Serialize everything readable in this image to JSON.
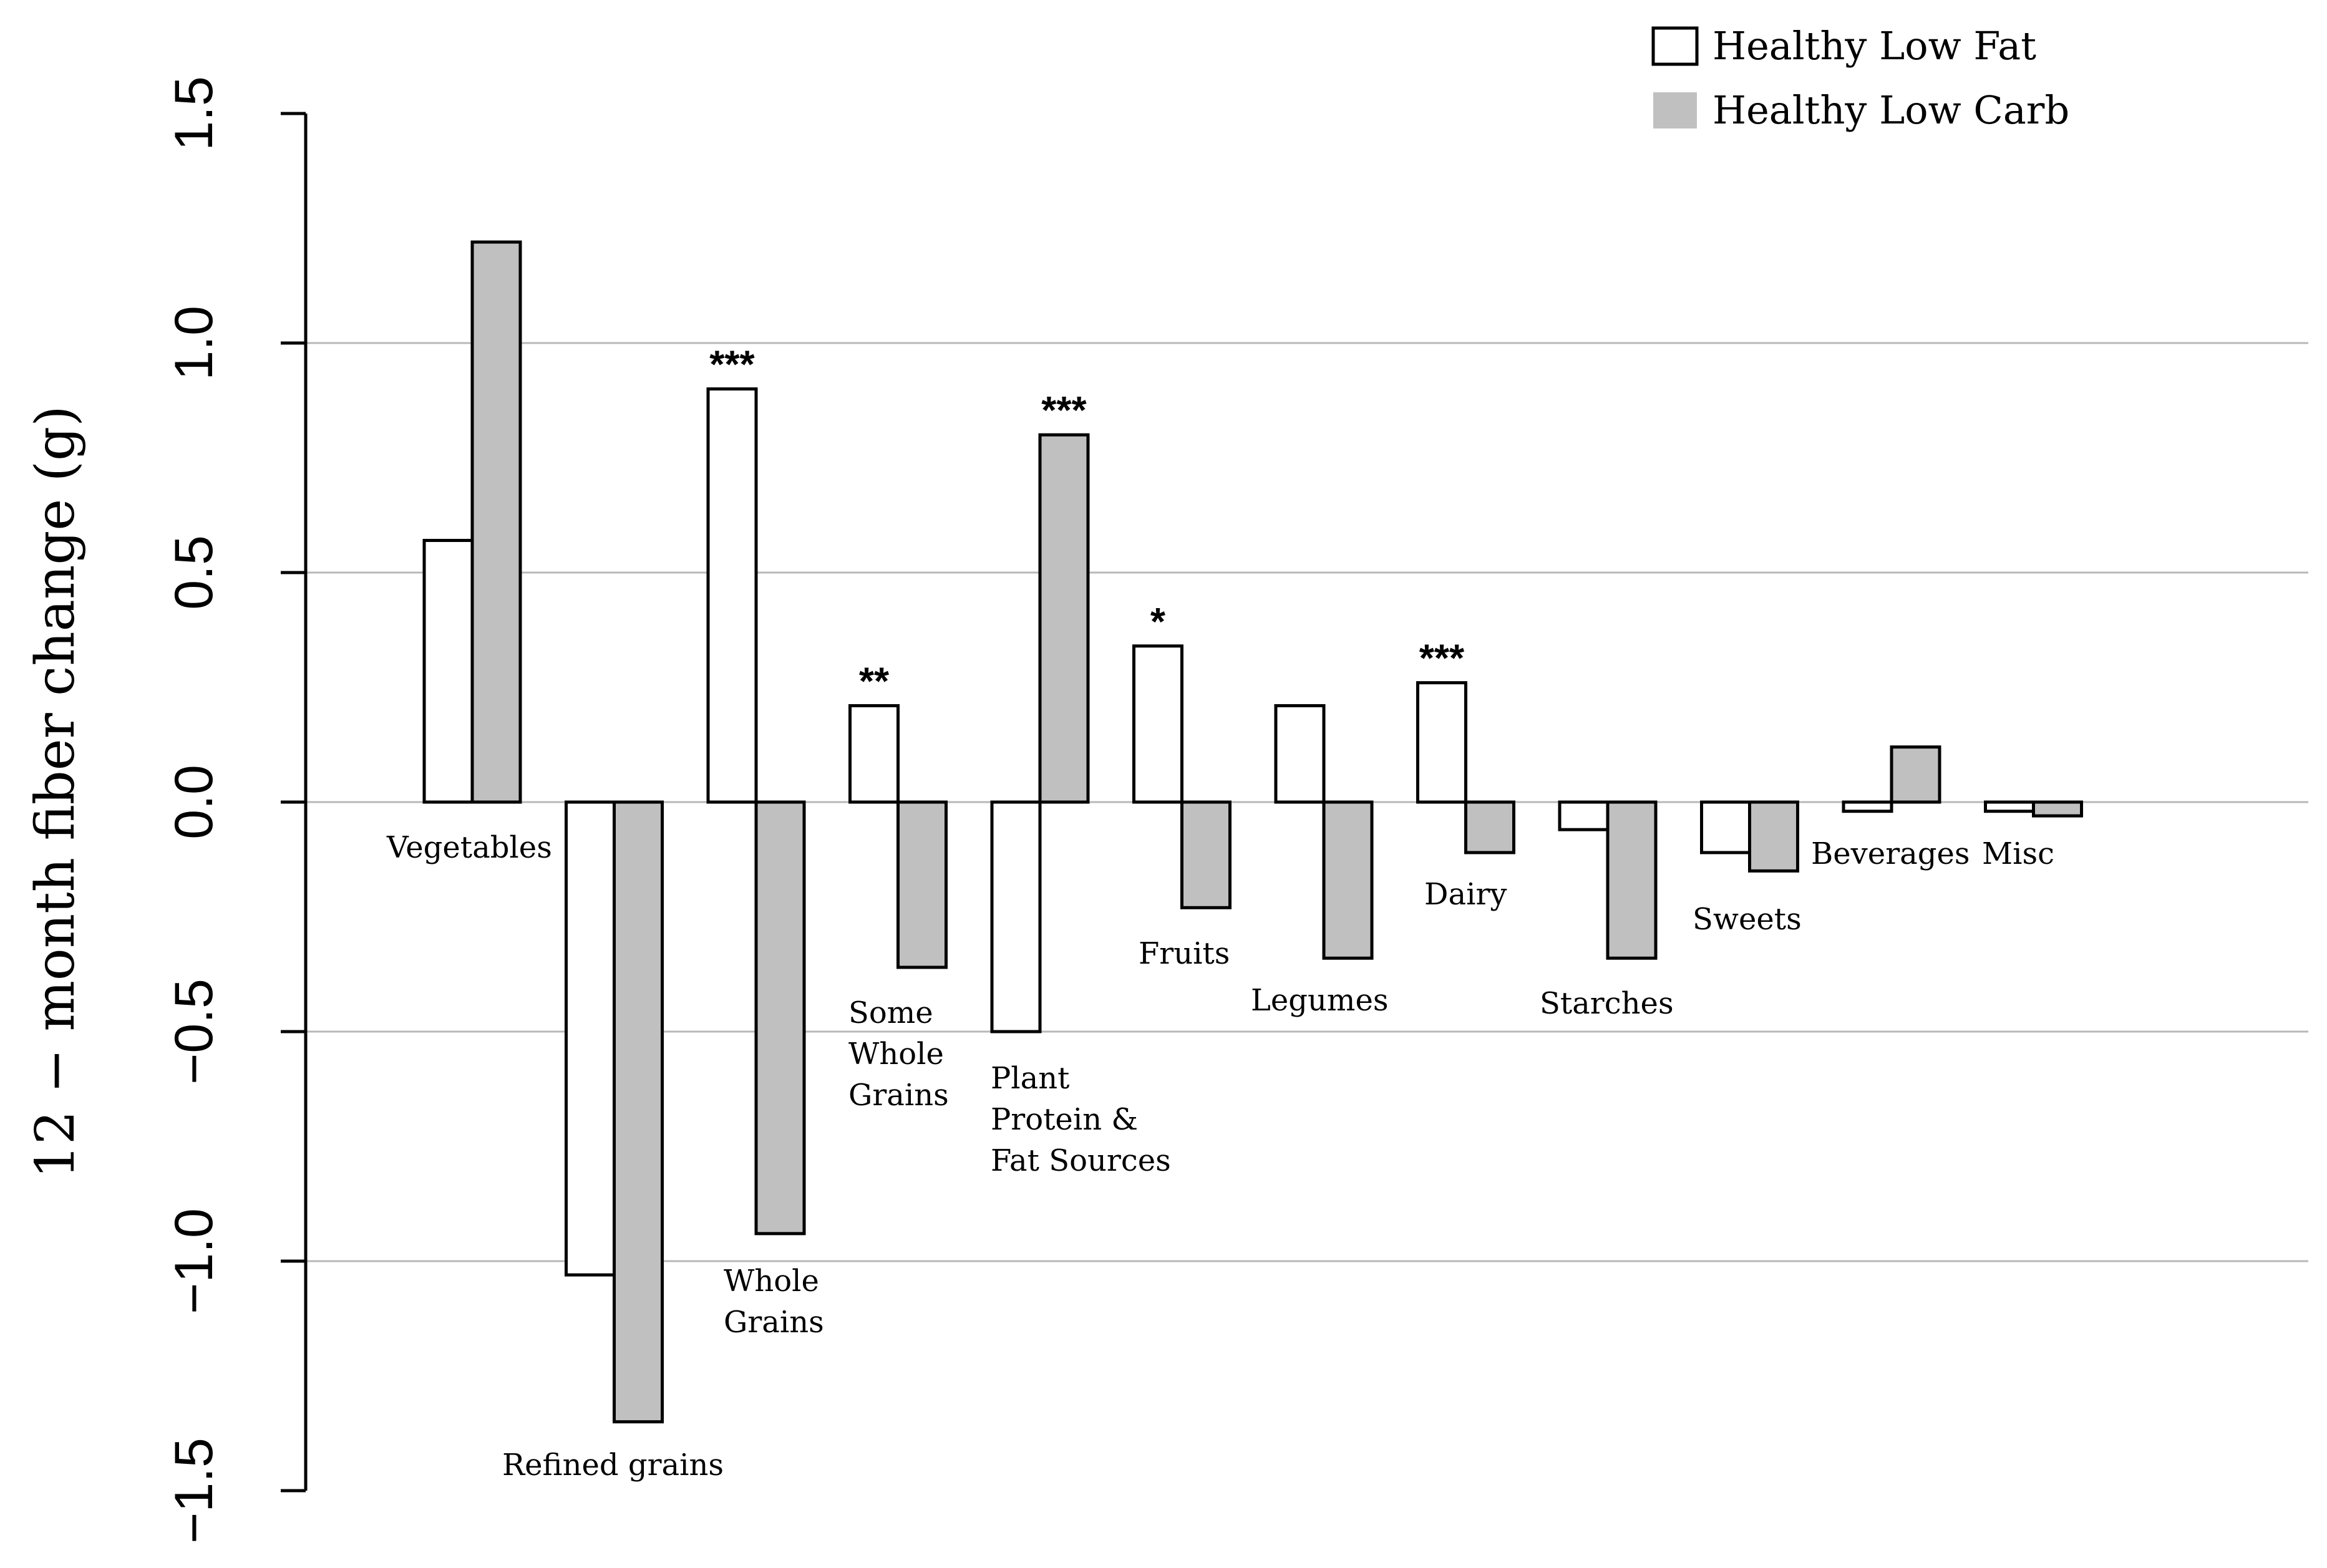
{
  "chart_data": {
    "type": "bar",
    "title": "",
    "xlabel": "",
    "ylabel": "12 − month fiber change (g)",
    "ylim": [
      -1.5,
      1.5
    ],
    "yticks": [
      -1.5,
      -1.0,
      -0.5,
      0.0,
      0.5,
      1.0,
      1.5
    ],
    "ytick_labels": [
      "−1.5",
      "−1.0",
      "−0.5",
      "0.0",
      "0.5",
      "1.0",
      "1.5"
    ],
    "grid": true,
    "legend_position": "top-right",
    "categories": [
      "Vegetables",
      "Refined grains",
      "Whole Grains",
      "Some Whole Grains",
      "Plant Protein & Fat Sources",
      "Fruits",
      "Legumes",
      "Dairy",
      "Starches",
      "Sweets",
      "Beverages",
      "Misc"
    ],
    "category_label_lines": [
      [
        "Vegetables"
      ],
      [
        "Refined grains"
      ],
      [
        "Whole",
        "Grains"
      ],
      [
        "Some",
        "Whole",
        "Grains"
      ],
      [
        "Plant",
        "Protein &",
        "Fat Sources"
      ],
      [
        "Fruits"
      ],
      [
        "Legumes"
      ],
      [
        "Dairy"
      ],
      [
        "Starches"
      ],
      [
        "Sweets"
      ],
      [
        "Beverages"
      ],
      [
        "Misc"
      ]
    ],
    "series": [
      {
        "name": "Healthy Low Fat",
        "color": "#ffffff",
        "values": [
          0.57,
          -1.03,
          0.9,
          0.21,
          -0.5,
          0.34,
          0.21,
          0.26,
          -0.06,
          -0.11,
          -0.02,
          -0.02
        ]
      },
      {
        "name": "Healthy Low Carb",
        "color": "#c0c0c0",
        "values": [
          1.22,
          -1.35,
          -0.94,
          -0.36,
          0.8,
          -0.23,
          -0.34,
          -0.11,
          -0.34,
          -0.15,
          0.12,
          -0.03
        ]
      }
    ],
    "significance": [
      "",
      "",
      "***",
      "**",
      "***",
      "*",
      "",
      "***",
      "",
      "",
      "",
      ""
    ]
  }
}
